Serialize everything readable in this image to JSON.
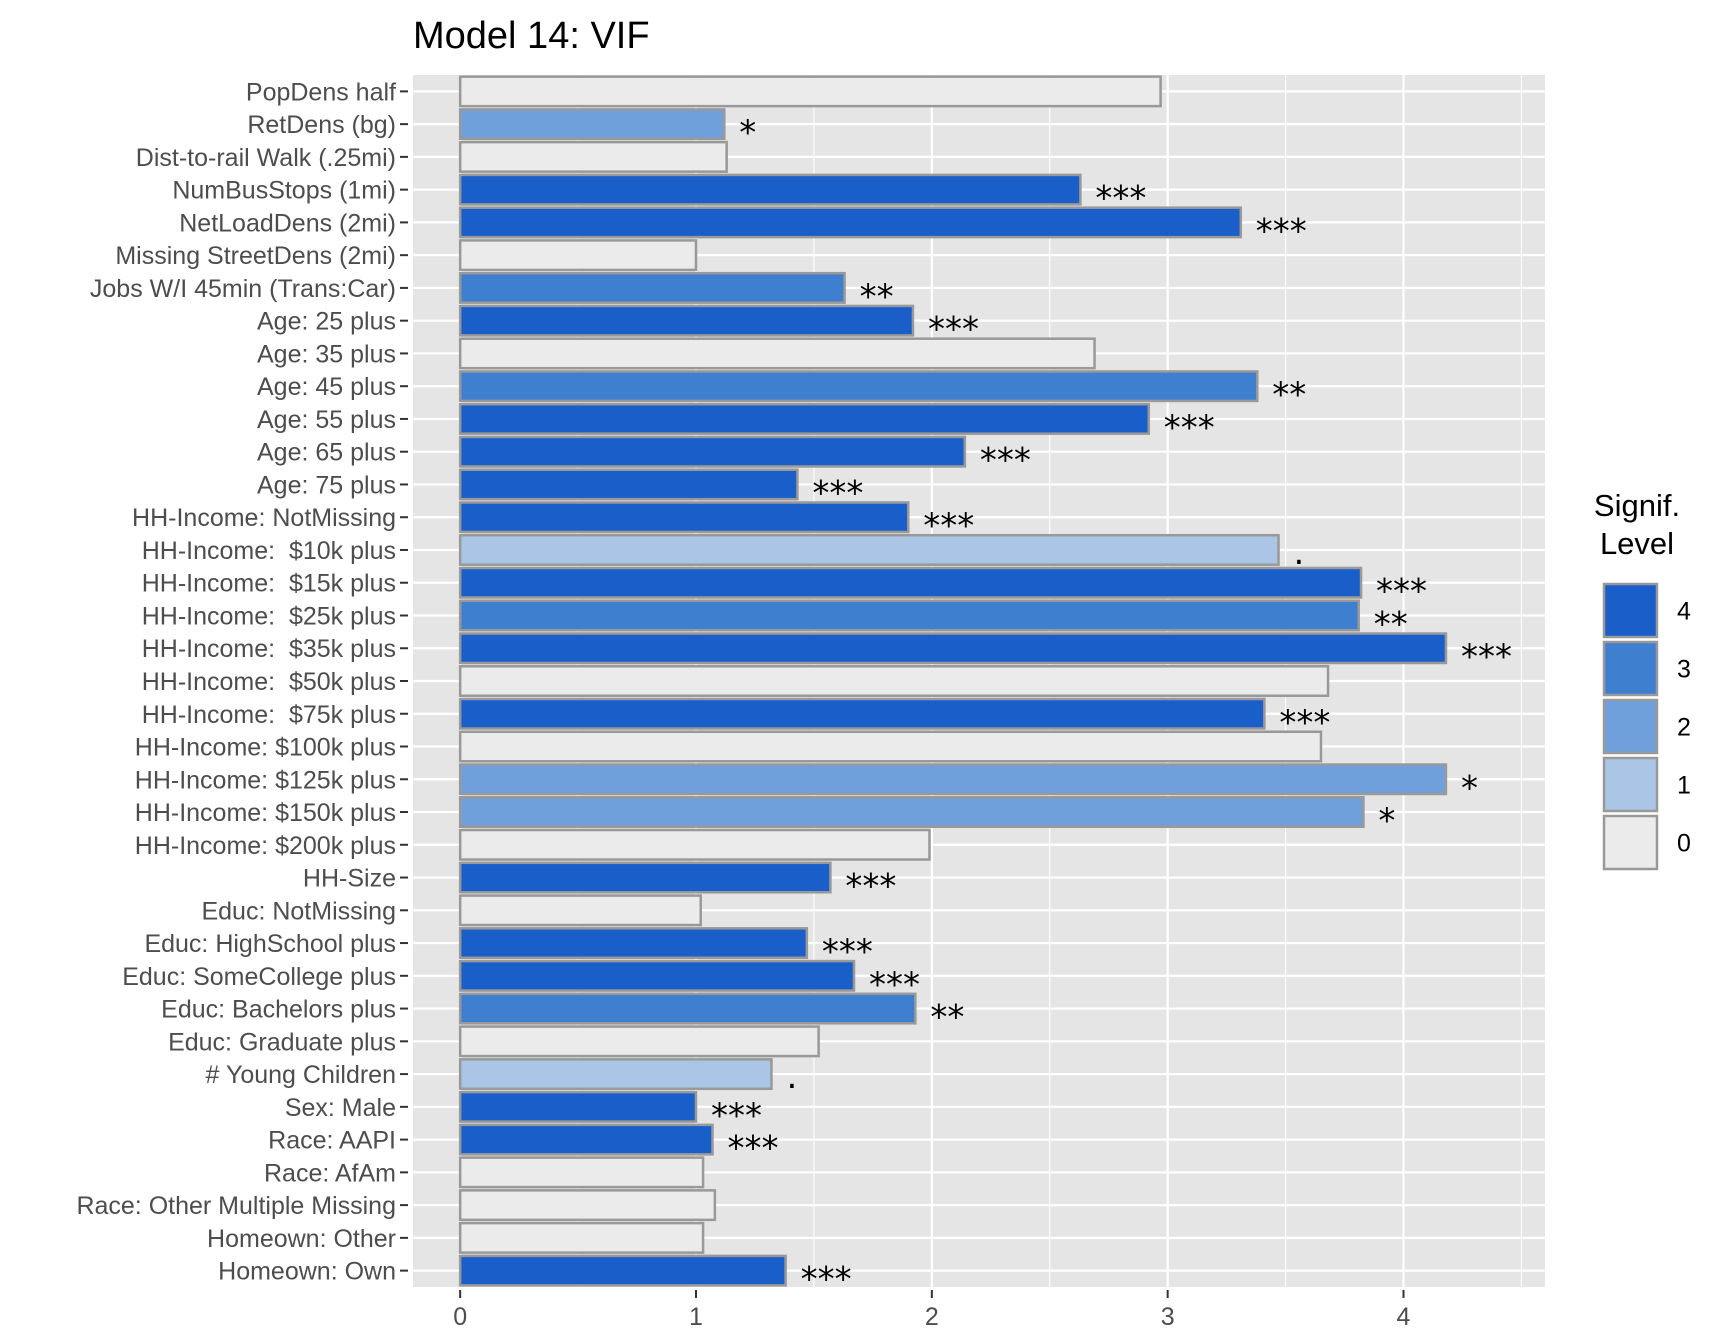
{
  "chart_data": {
    "type": "bar",
    "orientation": "horizontal",
    "title": "Model 14: VIF",
    "xlabel": "",
    "ylabel": "",
    "xlim": [
      -0.2,
      4.6
    ],
    "x_ticks": [
      0,
      1,
      2,
      3,
      4
    ],
    "grid": true,
    "legend": {
      "title_lines": [
        "Signif.",
        "Level"
      ],
      "placement": "right",
      "levels": [
        "4",
        "3",
        "2",
        "1",
        "0"
      ]
    },
    "colors": {
      "4": "#1a5fc9",
      "3": "#3f7fd0",
      "2": "#6fa0db",
      "1": "#aac5e5",
      "0": "#ebebeb",
      "bar_outline": "#999999",
      "panel": "#e5e5e5",
      "grid": "#ffffff"
    },
    "bars": [
      {
        "label": "PopDens half",
        "value": 2.97,
        "level": 0,
        "stars": ""
      },
      {
        "label": "RetDens (bg)",
        "value": 1.12,
        "level": 2,
        "stars": "*"
      },
      {
        "label": "Dist-to-rail Walk (.25mi)",
        "value": 1.13,
        "level": 0,
        "stars": ""
      },
      {
        "label": "NumBusStops (1mi)",
        "value": 2.63,
        "level": 4,
        "stars": "***"
      },
      {
        "label": "NetLoadDens (2mi)",
        "value": 3.31,
        "level": 4,
        "stars": "***"
      },
      {
        "label": "Missing StreetDens (2mi)",
        "value": 1.0,
        "level": 0,
        "stars": ""
      },
      {
        "label": "Jobs W/I 45min (Trans:Car)",
        "value": 1.63,
        "level": 3,
        "stars": "**"
      },
      {
        "label": "Age: 25 plus",
        "value": 1.92,
        "level": 4,
        "stars": "***"
      },
      {
        "label": "Age: 35 plus",
        "value": 2.69,
        "level": 0,
        "stars": ""
      },
      {
        "label": "Age: 45 plus",
        "value": 3.38,
        "level": 3,
        "stars": "**"
      },
      {
        "label": "Age: 55 plus",
        "value": 2.92,
        "level": 4,
        "stars": "***"
      },
      {
        "label": "Age: 65 plus",
        "value": 2.14,
        "level": 4,
        "stars": "***"
      },
      {
        "label": "Age: 75 plus",
        "value": 1.43,
        "level": 4,
        "stars": "***"
      },
      {
        "label": "HH-Income: NotMissing",
        "value": 1.9,
        "level": 4,
        "stars": "***"
      },
      {
        "label": "HH-Income:  $10k plus",
        "value": 3.47,
        "level": 1,
        "stars": "."
      },
      {
        "label": "HH-Income:  $15k plus",
        "value": 3.82,
        "level": 4,
        "stars": "***"
      },
      {
        "label": "HH-Income:  $25k plus",
        "value": 3.81,
        "level": 3,
        "stars": "**"
      },
      {
        "label": "HH-Income:  $35k plus",
        "value": 4.18,
        "level": 4,
        "stars": "***"
      },
      {
        "label": "HH-Income:  $50k plus",
        "value": 3.68,
        "level": 0,
        "stars": ""
      },
      {
        "label": "HH-Income:  $75k plus",
        "value": 3.41,
        "level": 4,
        "stars": "***"
      },
      {
        "label": "HH-Income: $100k plus",
        "value": 3.65,
        "level": 0,
        "stars": ""
      },
      {
        "label": "HH-Income: $125k plus",
        "value": 4.18,
        "level": 2,
        "stars": "*"
      },
      {
        "label": "HH-Income: $150k plus",
        "value": 3.83,
        "level": 2,
        "stars": "*"
      },
      {
        "label": "HH-Income: $200k plus",
        "value": 1.99,
        "level": 0,
        "stars": ""
      },
      {
        "label": "HH-Size",
        "value": 1.57,
        "level": 4,
        "stars": "***"
      },
      {
        "label": "Educ: NotMissing",
        "value": 1.02,
        "level": 0,
        "stars": ""
      },
      {
        "label": "Educ: HighSchool plus",
        "value": 1.47,
        "level": 4,
        "stars": "***"
      },
      {
        "label": "Educ: SomeCollege plus",
        "value": 1.67,
        "level": 4,
        "stars": "***"
      },
      {
        "label": "Educ: Bachelors plus",
        "value": 1.93,
        "level": 3,
        "stars": "**"
      },
      {
        "label": "Educ: Graduate plus",
        "value": 1.52,
        "level": 0,
        "stars": ""
      },
      {
        "label": "# Young Children",
        "value": 1.32,
        "level": 1,
        "stars": "."
      },
      {
        "label": "Sex: Male",
        "value": 1.0,
        "level": 4,
        "stars": "***"
      },
      {
        "label": "Race: AAPI",
        "value": 1.07,
        "level": 4,
        "stars": "***"
      },
      {
        "label": "Race: AfAm",
        "value": 1.03,
        "level": 0,
        "stars": ""
      },
      {
        "label": "Race: Other Multiple Missing",
        "value": 1.08,
        "level": 0,
        "stars": ""
      },
      {
        "label": "Homeown: Other",
        "value": 1.03,
        "level": 0,
        "stars": ""
      },
      {
        "label": "Homeown: Own",
        "value": 1.38,
        "level": 4,
        "stars": "***"
      }
    ]
  }
}
